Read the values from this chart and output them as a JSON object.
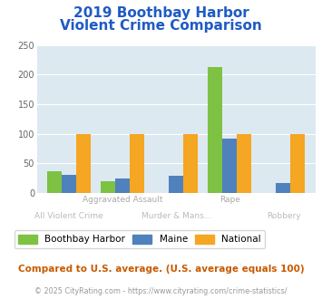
{
  "title_line1": "2019 Boothbay Harbor",
  "title_line2": "Violent Crime Comparison",
  "x_labels_top": [
    "",
    "Aggravated Assault",
    "",
    "Rape",
    ""
  ],
  "x_labels_bottom": [
    "All Violent Crime",
    "",
    "Murder & Mans...",
    "",
    "Robbery"
  ],
  "boothbay": [
    36,
    19,
    0,
    213,
    0
  ],
  "maine": [
    30,
    24,
    29,
    91,
    17
  ],
  "national": [
    100,
    100,
    100,
    100,
    100
  ],
  "bar_colors": {
    "boothbay": "#7dc242",
    "maine": "#4f81bd",
    "national": "#f5a623"
  },
  "ylim": [
    0,
    250
  ],
  "yticks": [
    0,
    50,
    100,
    150,
    200,
    250
  ],
  "title_color": "#1f5bc4",
  "title_fontsize": 11,
  "axes_bg": "#dce9f0",
  "fig_bg": "#ffffff",
  "footnote1": "Compared to U.S. average. (U.S. average equals 100)",
  "footnote2": "© 2025 CityRating.com - https://www.cityrating.com/crime-statistics/",
  "footnote1_color": "#c85a00",
  "footnote2_color": "#999999",
  "legend_labels": [
    "Boothbay Harbor",
    "Maine",
    "National"
  ],
  "xlabel_top_color": "#aaaaaa",
  "xlabel_bottom_color": "#bbbbbb"
}
